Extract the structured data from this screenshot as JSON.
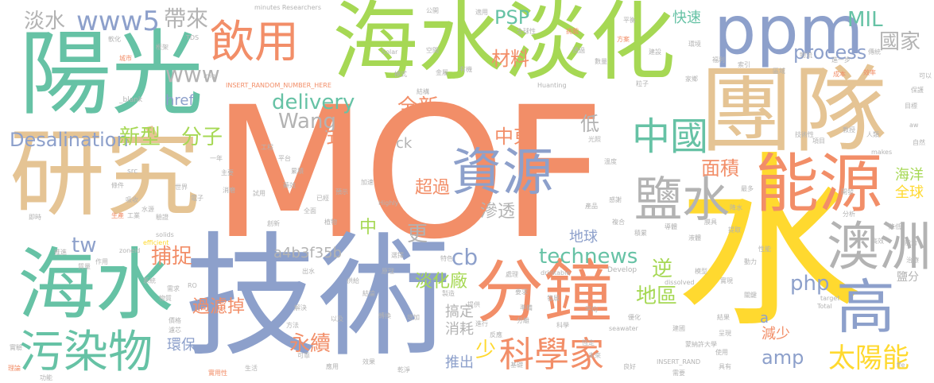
{
  "palette": {
    "orange": "#f28e68",
    "green": "#66c2a5",
    "blue": "#8da0cb",
    "tan": "#e5c494",
    "lime": "#a6d854",
    "yellow": "#ffd92f",
    "pink": "#e78ac3",
    "gray": "#b3b3b3"
  },
  "words": {
    "mof": "MOF",
    "shui": "水",
    "jishu": "技術",
    "tuandui": "團隊",
    "haishuidanhua": "海水淡化",
    "yangguang": "陽光",
    "yanjiu": "研究",
    "haishui": "海水",
    "ppm": "ppm",
    "fenzhong": "分鐘",
    "nengyuan": "能源",
    "ziyuan": "資源",
    "yanshui": "鹽水",
    "aozhou": "澳洲",
    "gao": "高",
    "wuranwu": "污染物",
    "kexuejia": "科學家",
    "yinyong": "飲用",
    "zhongguo": "中國",
    "taiyangneng": "太陽能",
    "technews": "technews",
    "delivery": "delivery",
    "desalination": "Desalination",
    "www5": "www5",
    "danshui": "淡水",
    "daidai": "帶來",
    "www": "www",
    "wang": "Wang",
    "psp": "PSP",
    "cailiao": "材料",
    "quanxin": "全新",
    "mil": "MIL",
    "process": "process",
    "guojia": "國家",
    "xinxing": "新型",
    "fenzi": "分子",
    "shi": "式",
    "di": "低",
    "zhongdong": "中東",
    "mianji": "面積",
    "gengduo": "更",
    "shentou": "滲透",
    "buzhuo": "捕捉",
    "tw": "tw",
    "a4b3f35b": "a4b3f35b",
    "cb": "cb",
    "danhuachang": "淡化廠",
    "php": "php",
    "ni": "逆",
    "diqu": "地區",
    "yongxu": "永續",
    "guolvdiao": "過濾掉",
    "amp": "amp",
    "shao": "少",
    "huanbao": "環保",
    "jianshao": "減少",
    "quanqiu": "全球",
    "haiyang": "海洋",
    "chaoguo": "超過",
    "diqiu": "地球",
    "zhong": "中",
    "kuaisu": "快速",
    "href": "href",
    "ck": "ck",
    "xiaohao": "消耗",
    "gaoding": "搞定",
    "tuichu": "推出",
    "yanfen": "鹽分",
    "a": "a",
    "researchers": "minutes Researchers",
    "insert_random": "INSERT_RANDOM_NUMBER_HERE",
    "blank": "_blank",
    "solar": "Solar",
    "huanting": "Huanting",
    "highly": "Highly",
    "develop": "Develop",
    "drinkable": "drinkable",
    "dissolved": "dissolved",
    "seawater": "seawater",
    "solids": "solids",
    "efficient": "efficient",
    "zoneid": "zoneid",
    "makes": "makes",
    "target": "target",
    "total": "Total",
    "insert_rand": "INSERT_RAND",
    "src": "src",
    "aw": "aw",
    "img": "img",
    "ffe": "ffe",
    "ro": "RO",
    "tds": "TDS",
    "gongkai": "公開",
    "quanqiuxing": "全球性",
    "shiyong": "適用",
    "tiaozhan": "挑戰",
    "pinghao": "平衡",
    "fangan": "方案",
    "jianshe": "建設",
    "huanjing": "環境",
    "chengben": "成本",
    "xiaolv": "效率",
    "chuanqi": "傳統",
    "jinyi": "進一步",
    "keyi": "可以",
    "lizi": "粒子",
    "jiaxiang": "家鄉",
    "fuli": "福利",
    "suoyin": "索引",
    "tongguo": "通過",
    "shuliang": "數量",
    "kongjian": "空間",
    "moshi": "模式",
    "jiegou": "結構",
    "jinshu": "金屬",
    "youji": "有機",
    "kuangjia": "框架",
    "dianzi": "電子",
    "shijie": "世界",
    "yanzheng": "驗證",
    "xishou": "吸收",
    "shuiyuan": "水源",
    "tiaojian": "條件",
    "shengchan": "生產",
    "gongye": "工業",
    "jishi": "即時",
    "zuoyong": "作用",
    "tuijin": "推進",
    "zhiliang": "質量",
    "xitong": "系統",
    "xuqiu": "需求",
    "wuzhi": "物質",
    "jiage": "價格",
    "lvxin": "濾芯",
    "shiyan": "實驗",
    "lilun": "理論",
    "gongneng": "功能",
    "shiyongxing": "實用性",
    "shenghuo": "生活",
    "yingyong": "應用",
    "xiaoguo": "效果",
    "ganjing": "乾淨",
    "fenli": "分離",
    "zhunbei": "準備",
    "yaoqiu": "要求",
    "fazhan": "發展",
    "jinxing": "進行",
    "fanying": "反應",
    "tigong": "提供",
    "zhizao": "製造",
    "chuli": "處理",
    "jichu": "基礎",
    "weilai": "未來",
    "lianghao": "良好",
    "xuyao": "需要",
    "juyou": "具有",
    "shiyong2": "使用",
    "chengxian": "呈現",
    "jieguo": "結果",
    "moxing": "模型",
    "shixian": "實現",
    "guanjian": "關鍵",
    "xingneng": "性能",
    "dongli": "動力",
    "fenxi": "分析",
    "gaoxiao": "高效",
    "nengli": "能力",
    "jiangdi": "降低",
    "zhiliao": "治療",
    "kaifa": "開發",
    "xiangmu": "項目",
    "jishu2": "技術性",
    "mubiao": "目標",
    "baohu": "保護",
    "ziran": "自然",
    "jiaoshou": "教授",
    "daxue": "蒙納許大學",
    "jianguo": "建國",
    "pingjun": "平均",
    "youhua": "優化",
    "kexue": "科學",
    "hengding": "恆定",
    "zhuanhuan": "轉換",
    "zengjia": "增加",
    "jielun": "結論",
    "yuanli": "原理",
    "xuanze": "選擇",
    "tese": "特色",
    "gongji": "供給",
    "chushui": "出水",
    "yiji": "以及",
    "jiejue": "解決",
    "fangfa": "方法",
    "kekao": "可靠",
    "chuangxin": "創新",
    "zhiwu": "植物",
    "quanmian": "全面",
    "yijing": "已經",
    "yushi": "預示",
    "jiasu": "加速",
    "yaoxiao": "藥效",
    "leiji": "累積",
    "pingtai": "平台",
    "gongcheng": "工程",
    "shiyong3": "試用",
    "xiaomo": "消磨",
    "zhuyao": "主要",
    "yinian": "一年",
    "wendu": "溫度",
    "guangzhao": "光照",
    "ganxie": "感謝",
    "chanpin": "產品",
    "fuhe": "複合",
    "jilei": "積累",
    "daoti": "導體",
    "yeti": "液體",
    "moju": "膜具",
    "tiqu": "提取",
    "zuiduo": "最多",
    "jiangshui": "降水",
    "wuliu": "物流",
    "quyu": "區域",
    "ruanhua": "軟化",
    "chengshi": "城市",
    "renlei": "人類"
  }
}
